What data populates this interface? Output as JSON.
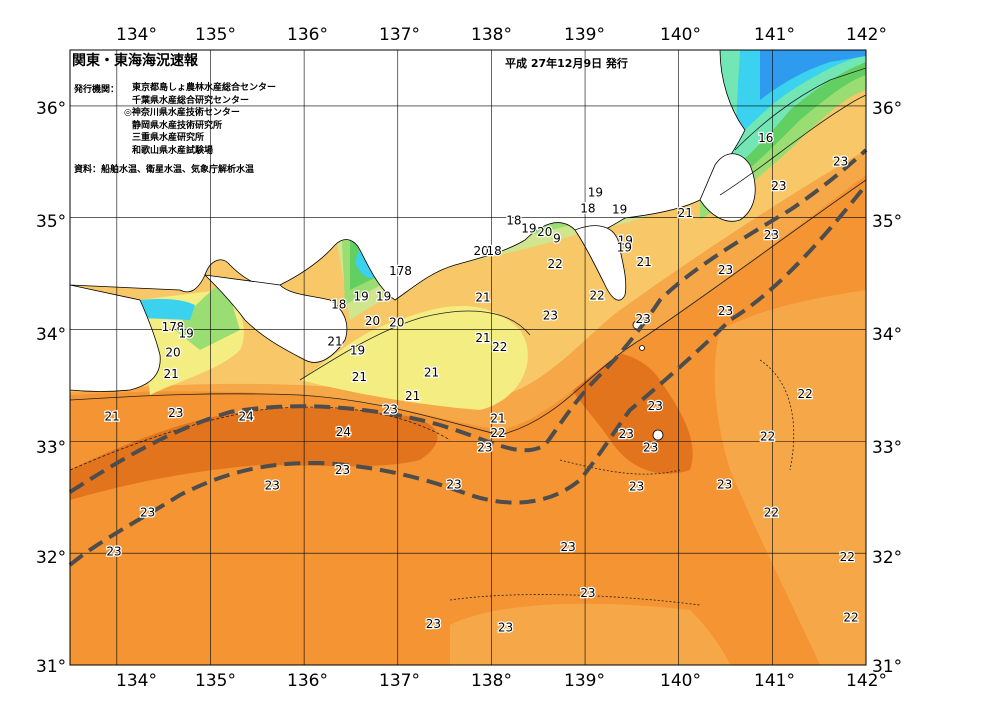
{
  "title": "関東・東海海況速報",
  "issued": "平成 27年12月9日 発行",
  "issuer_label": "発行機関：",
  "issuers": [
    "東京都島しょ農林水産総合センター",
    "千葉県水産総合研究センター",
    "◎神奈川県水産技術センター",
    "静岡県水産技術研究所",
    "三重県水産研究所",
    "和歌山県水産試験場"
  ],
  "sources": "資料：船舶水温、衛星水温、気象庁解析水温",
  "lon_labels": [
    "134°",
    "135°",
    "136°",
    "137°",
    "138°",
    "139°",
    "140°",
    "141°",
    "142°"
  ],
  "lat_labels": [
    "36°",
    "35°",
    "34°",
    "33°",
    "32°",
    "31°"
  ],
  "isotherm_labels": [
    {
      "t": "16",
      "lon": 140.93,
      "lat": 35.71
    },
    {
      "t": "23",
      "lon": 141.73,
      "lat": 35.5
    },
    {
      "t": "23",
      "lon": 141.07,
      "lat": 35.28
    },
    {
      "t": "21",
      "lon": 140.07,
      "lat": 35.04
    },
    {
      "t": "23",
      "lon": 140.99,
      "lat": 34.84
    },
    {
      "t": "23",
      "lon": 140.5,
      "lat": 34.53
    },
    {
      "t": "19",
      "lon": 139.11,
      "lat": 35.22
    },
    {
      "t": "18",
      "lon": 139.03,
      "lat": 35.08
    },
    {
      "t": "19",
      "lon": 139.37,
      "lat": 35.07
    },
    {
      "t": "18",
      "lon": 138.24,
      "lat": 34.97
    },
    {
      "t": "19",
      "lon": 138.4,
      "lat": 34.9
    },
    {
      "t": "20",
      "lon": 138.57,
      "lat": 34.87
    },
    {
      "t": "9",
      "lon": 138.7,
      "lat": 34.81
    },
    {
      "t": "19",
      "lon": 139.43,
      "lat": 34.79
    },
    {
      "t": "19",
      "lon": 139.42,
      "lat": 34.73
    },
    {
      "t": "20",
      "lon": 137.89,
      "lat": 34.7
    },
    {
      "t": "18",
      "lon": 138.03,
      "lat": 34.7
    },
    {
      "t": "22",
      "lon": 138.68,
      "lat": 34.58
    },
    {
      "t": "21",
      "lon": 139.63,
      "lat": 34.6
    },
    {
      "t": "23",
      "lon": 140.5,
      "lat": 34.16
    },
    {
      "t": "23",
      "lon": 139.62,
      "lat": 34.09
    },
    {
      "t": "22",
      "lon": 139.13,
      "lat": 34.3
    },
    {
      "t": "23",
      "lon": 138.63,
      "lat": 34.12
    },
    {
      "t": "21",
      "lon": 137.91,
      "lat": 34.28
    },
    {
      "t": "21",
      "lon": 137.91,
      "lat": 33.92
    },
    {
      "t": "22",
      "lon": 138.09,
      "lat": 33.84
    },
    {
      "t": "17",
      "lon": 136.99,
      "lat": 34.52
    },
    {
      "t": "8",
      "lon": 137.11,
      "lat": 34.52
    },
    {
      "t": "19",
      "lon": 136.85,
      "lat": 34.29
    },
    {
      "t": "19",
      "lon": 136.61,
      "lat": 34.29
    },
    {
      "t": "18",
      "lon": 136.37,
      "lat": 34.22
    },
    {
      "t": "20",
      "lon": 136.73,
      "lat": 34.07
    },
    {
      "t": "20",
      "lon": 136.99,
      "lat": 34.06
    },
    {
      "t": "21",
      "lon": 136.33,
      "lat": 33.89
    },
    {
      "t": "19",
      "lon": 136.57,
      "lat": 33.81
    },
    {
      "t": "21",
      "lon": 136.59,
      "lat": 33.57
    },
    {
      "t": "21",
      "lon": 137.36,
      "lat": 33.61
    },
    {
      "t": "21",
      "lon": 137.16,
      "lat": 33.4
    },
    {
      "t": "23",
      "lon": 136.92,
      "lat": 33.28
    },
    {
      "t": "24",
      "lon": 135.38,
      "lat": 33.22
    },
    {
      "t": "24",
      "lon": 136.42,
      "lat": 33.08
    },
    {
      "t": "21",
      "lon": 138.07,
      "lat": 33.2
    },
    {
      "t": "22",
      "lon": 138.07,
      "lat": 33.07
    },
    {
      "t": "23",
      "lon": 137.93,
      "lat": 32.94
    },
    {
      "t": "17",
      "lon": 134.56,
      "lat": 34.02
    },
    {
      "t": "8",
      "lon": 134.68,
      "lat": 34.02
    },
    {
      "t": "19",
      "lon": 134.74,
      "lat": 33.96
    },
    {
      "t": "20",
      "lon": 134.6,
      "lat": 33.79
    },
    {
      "t": "21",
      "lon": 134.58,
      "lat": 33.6
    },
    {
      "t": "21",
      "lon": 133.95,
      "lat": 33.22
    },
    {
      "t": "23",
      "lon": 134.63,
      "lat": 33.25
    },
    {
      "t": "23",
      "lon": 135.66,
      "lat": 32.6
    },
    {
      "t": "23",
      "lon": 136.41,
      "lat": 32.74
    },
    {
      "t": "23",
      "lon": 137.6,
      "lat": 32.61
    },
    {
      "t": "23",
      "lon": 134.33,
      "lat": 32.36
    },
    {
      "t": "23",
      "lon": 133.97,
      "lat": 32.01
    },
    {
      "t": "23",
      "lon": 138.82,
      "lat": 32.05
    },
    {
      "t": "23",
      "lon": 139.75,
      "lat": 33.31
    },
    {
      "t": "23",
      "lon": 139.44,
      "lat": 33.06
    },
    {
      "t": "23",
      "lon": 139.7,
      "lat": 32.94
    },
    {
      "t": "23",
      "lon": 139.55,
      "lat": 32.59
    },
    {
      "t": "23",
      "lon": 140.49,
      "lat": 32.61
    },
    {
      "t": "22",
      "lon": 141.35,
      "lat": 33.42
    },
    {
      "t": "22",
      "lon": 140.95,
      "lat": 33.04
    },
    {
      "t": "22",
      "lon": 140.99,
      "lat": 32.36
    },
    {
      "t": "22",
      "lon": 141.8,
      "lat": 31.96
    },
    {
      "t": "22",
      "lon": 141.84,
      "lat": 31.42
    },
    {
      "t": "23",
      "lon": 139.03,
      "lat": 31.64
    },
    {
      "t": "23",
      "lon": 138.15,
      "lat": 31.33
    },
    {
      "t": "23",
      "lon": 137.38,
      "lat": 31.36
    }
  ],
  "colors": {
    "c12": "#2f9bef",
    "c14": "#3ad2ee",
    "c16": "#72e6b4",
    "c18": "#62cf62",
    "c19": "#9add72",
    "c20": "#cfe58e",
    "c21": "#f3ed82",
    "c21b": "#f8c868",
    "c22": "#f6a848",
    "c23": "#f59432",
    "c24": "#e2741e",
    "kuroshio": "#4d4d4d"
  }
}
